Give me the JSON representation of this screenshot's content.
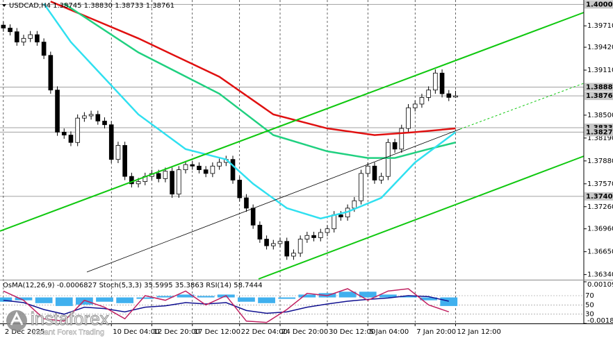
{
  "chart_data": [
    {
      "type": "candlestick",
      "title": "USDCAD,H4  1.38745 1.38830 1.38733 1.38761",
      "xlim": [
        -0.5,
        86
      ],
      "ylim": [
        1.3628,
        1.4006
      ],
      "grid": true,
      "bull_color": "#ffffff",
      "bear_color": "#000000",
      "wick_color": "#000000",
      "xticks": [
        {
          "value": 0,
          "label": "2 Dec 2025"
        },
        {
          "value": 16,
          "label": "10 Dec 04:00"
        },
        {
          "value": 22,
          "label": "12 Dec 20:00"
        },
        {
          "value": 28,
          "label": "17 Dec 12:00"
        },
        {
          "value": 35,
          "label": "22 Dec 04:00"
        },
        {
          "value": 41,
          "label": "24 Dec 20:00"
        },
        {
          "value": 48,
          "label": "30 Dec 12:00"
        },
        {
          "value": 54,
          "label": "5 Jan 04:00"
        },
        {
          "value": 61,
          "label": "7 Jan 20:00"
        },
        {
          "value": 67,
          "label": "12 Jan 12:00"
        }
      ],
      "yticks": [
        {
          "value": 1.3971,
          "label": "1.39710"
        },
        {
          "value": 1.3942,
          "label": "1.39420"
        },
        {
          "value": 1.3911,
          "label": "1.39110"
        },
        {
          "value": 1.385,
          "label": "1.38500"
        },
        {
          "value": 1.3819,
          "label": "1.38190"
        },
        {
          "value": 1.3788,
          "label": "1.37880"
        },
        {
          "value": 1.3757,
          "label": "1.37570"
        },
        {
          "value": 1.3726,
          "label": "1.37260"
        },
        {
          "value": 1.3696,
          "label": "1.36960"
        },
        {
          "value": 1.3665,
          "label": "1.36650"
        },
        {
          "value": 1.3634,
          "label": "1.36340"
        }
      ],
      "levels": [
        {
          "value": 1.4,
          "label": "1.40000"
        },
        {
          "value": 1.3888,
          "label": "1.38880"
        },
        1.38761,
        {
          "value": 1.3833,
          "label": "1.38330"
        },
        {
          "value": 1.3827,
          "label": "1.38270"
        },
        {
          "value": 1.374,
          "label": "1.37400"
        }
      ],
      "open": [
        1.3972,
        1.3968,
        1.3963,
        1.3949,
        1.3954,
        1.3959,
        1.3949,
        1.3931,
        1.3884,
        1.3827,
        1.3823,
        1.3813,
        1.3846,
        1.3849,
        1.3851,
        1.3842,
        1.3837,
        1.379,
        1.3809,
        1.3767,
        1.3757,
        1.376,
        1.3767,
        1.3771,
        1.3764,
        1.3774,
        1.3743,
        1.3776,
        1.3783,
        1.3781,
        1.3776,
        1.3771,
        1.3781,
        1.3786,
        1.379,
        1.3762,
        1.3738,
        1.3724,
        1.3701,
        1.3682,
        1.3673,
        1.3676,
        1.3679,
        1.3659,
        1.3663,
        1.3682,
        1.3687,
        1.3684,
        1.3691,
        1.3696,
        1.3715,
        1.3712,
        1.3724,
        1.3734,
        1.3771,
        1.3781,
        1.3762,
        1.3767,
        1.3813,
        1.3804,
        1.3832,
        1.386,
        1.3865,
        1.3874,
        1.3884,
        1.3907,
        1.3879,
        1.38745
      ],
      "high": [
        1.3977,
        1.3973,
        1.3968,
        1.3959,
        1.3964,
        1.3964,
        1.3954,
        1.3936,
        1.3889,
        1.3832,
        1.3828,
        1.3851,
        1.3854,
        1.3856,
        1.3856,
        1.3847,
        1.3842,
        1.3814,
        1.3814,
        1.3772,
        1.3765,
        1.3772,
        1.3776,
        1.3776,
        1.3779,
        1.3779,
        1.3781,
        1.3788,
        1.3788,
        1.3786,
        1.3781,
        1.3786,
        1.3791,
        1.3795,
        1.3795,
        1.3767,
        1.3743,
        1.3729,
        1.3706,
        1.3687,
        1.3681,
        1.3684,
        1.3684,
        1.3668,
        1.3687,
        1.3692,
        1.3692,
        1.3696,
        1.3701,
        1.372,
        1.372,
        1.3729,
        1.3739,
        1.3776,
        1.3786,
        1.3786,
        1.3772,
        1.3818,
        1.3818,
        1.3837,
        1.3865,
        1.387,
        1.3879,
        1.3889,
        1.3912,
        1.3912,
        1.3884,
        1.3883
      ],
      "low": [
        1.3963,
        1.3958,
        1.3944,
        1.3944,
        1.3949,
        1.3944,
        1.3926,
        1.3879,
        1.3822,
        1.3818,
        1.3808,
        1.3808,
        1.3841,
        1.3844,
        1.3837,
        1.3832,
        1.3785,
        1.3785,
        1.3762,
        1.3752,
        1.3752,
        1.3755,
        1.3762,
        1.3759,
        1.3759,
        1.3738,
        1.3738,
        1.3771,
        1.3776,
        1.3771,
        1.3766,
        1.3766,
        1.3776,
        1.3781,
        1.3757,
        1.3733,
        1.3719,
        1.3696,
        1.3677,
        1.3668,
        1.3668,
        1.3671,
        1.3654,
        1.3654,
        1.3658,
        1.3677,
        1.3679,
        1.3679,
        1.3686,
        1.3691,
        1.3707,
        1.3707,
        1.3719,
        1.3729,
        1.3766,
        1.3757,
        1.3757,
        1.3762,
        1.3799,
        1.3799,
        1.3827,
        1.3855,
        1.386,
        1.3869,
        1.3879,
        1.3874,
        1.3869,
        1.38733
      ],
      "close": [
        1.3968,
        1.3963,
        1.3949,
        1.3954,
        1.3959,
        1.3949,
        1.3931,
        1.3884,
        1.3827,
        1.3823,
        1.3813,
        1.3846,
        1.3849,
        1.3851,
        1.3842,
        1.3837,
        1.379,
        1.3809,
        1.3767,
        1.3757,
        1.376,
        1.3767,
        1.3771,
        1.3764,
        1.3774,
        1.3743,
        1.3776,
        1.3783,
        1.3781,
        1.3776,
        1.3771,
        1.3781,
        1.3786,
        1.379,
        1.3762,
        1.3738,
        1.3724,
        1.3701,
        1.3682,
        1.3673,
        1.3676,
        1.3679,
        1.3659,
        1.3663,
        1.3682,
        1.3687,
        1.3684,
        1.3691,
        1.3696,
        1.3715,
        1.3712,
        1.3724,
        1.3734,
        1.3771,
        1.3781,
        1.3762,
        1.3767,
        1.3813,
        1.3804,
        1.3832,
        1.386,
        1.3865,
        1.3874,
        1.3884,
        1.3907,
        1.3879,
        1.3874,
        1.38761
      ],
      "series": [
        {
          "color": "#e01010",
          "x": [
            7,
            20,
            32,
            40,
            48,
            55,
            61,
            67
          ],
          "values": [
            1.4004,
            1.3954,
            1.3902,
            1.3851,
            1.3832,
            1.3823,
            1.3827,
            1.3832
          ]
        },
        {
          "color": "#20d080",
          "x": [
            9,
            20,
            32,
            40,
            48,
            54,
            58,
            63,
            67
          ],
          "values": [
            1.4001,
            1.3935,
            1.3879,
            1.3823,
            1.3801,
            1.3792,
            1.3792,
            1.3804,
            1.3813
          ]
        },
        {
          "color": "#30e0f0",
          "x": [
            6,
            10,
            20,
            27,
            33,
            37,
            42,
            47,
            51,
            56,
            61,
            67
          ],
          "values": [
            1.4001,
            1.3949,
            1.3851,
            1.3804,
            1.379,
            1.3757,
            1.3724,
            1.371,
            1.3719,
            1.3738,
            1.3786,
            1.3827
          ]
        }
      ]
    },
    {
      "type": "oscillator",
      "title": "OsMA(12,26,9) -0.0006827 Stoch(5,3,3) 35.5995 35.3863 RSI(14) 58.7444",
      "xlim": [
        -0.5,
        86
      ],
      "ylim": [
        -0.001817,
        0.001093
      ],
      "yticks": [
        0.001093,
        -0.001817
      ],
      "y2lim": [
        10,
        100
      ],
      "y2ticks": [
        70,
        50,
        30
      ],
      "x": [
        0,
        3,
        6,
        9,
        12,
        15,
        18,
        21,
        24,
        27,
        30,
        33,
        36,
        39,
        42,
        45,
        48,
        51,
        54,
        57,
        60,
        63,
        66
      ],
      "series": [
        {
          "color": "#40b0ee",
          "values": [
            -0.0003,
            -0.0002,
            -0.0004,
            -0.0006,
            -0.0005,
            -0.0003,
            -0.0004,
            -0.0001,
            0.0001,
            0.0002,
            0.0001,
            0.0002,
            -0.0003,
            -0.0004,
            -0.0001,
            0.0002,
            0.0003,
            0.0004,
            0.0004,
            0.0002,
            0.0001,
            -0.0002,
            -0.0006
          ]
        },
        {
          "color": "#101090",
          "axis": "y2",
          "values": [
            60,
            55,
            40,
            30,
            45,
            42,
            35,
            45,
            48,
            55,
            52,
            55,
            38,
            32,
            35,
            45,
            52,
            58,
            62,
            65,
            70,
            68,
            58
          ]
        },
        {
          "color": "#c02060",
          "axis": "y2",
          "values": [
            80,
            60,
            20,
            15,
            60,
            45,
            20,
            70,
            60,
            80,
            50,
            70,
            15,
            12,
            40,
            75,
            70,
            85,
            60,
            80,
            85,
            50,
            35
          ]
        }
      ]
    }
  ],
  "watermark": {
    "name": "instaforex",
    "tagline": "Instant Forex Trading"
  }
}
